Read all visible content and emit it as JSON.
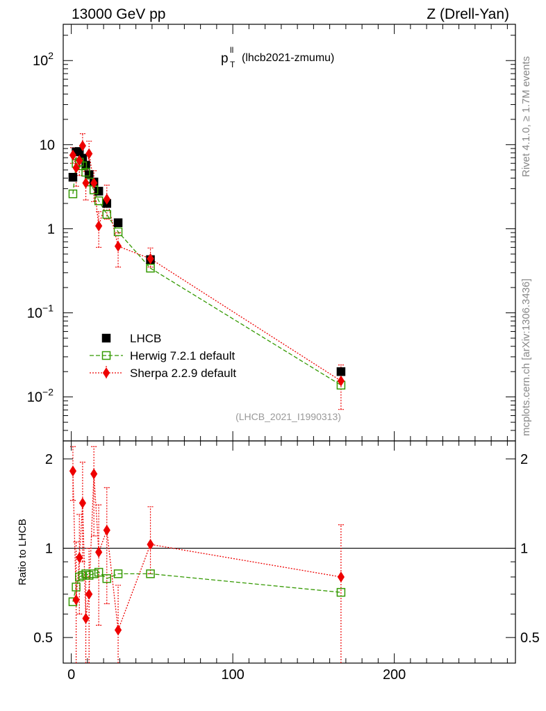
{
  "header": {
    "left": "13000 GeV pp",
    "right": "Z (Drell-Yan)"
  },
  "plot_title": {
    "main": "p",
    "superscript": "ll",
    "subscript": "T",
    "suffix": "(lhcb2021-zmumu)"
  },
  "side_labels": {
    "rivet": "Rivet 4.1.0, ≥ 1.7M events",
    "mcplots": "mcplots.cern.ch [arXiv:1306.3436]"
  },
  "analysis_tag": "(LHCB_2021_I1990313)",
  "ratio_ylabel": "Ratio to LHCB",
  "colors": {
    "data": "#000000",
    "herwig": "#339900",
    "sherpa": "#ee0000"
  },
  "chart_data": [
    {
      "type": "scatter",
      "panel": "main",
      "yscale": "log",
      "xlim": [
        -5,
        275
      ],
      "ylim": [
        0.003,
        270
      ],
      "y_ticks": [
        {
          "value": 0.01,
          "base": "10",
          "exp": "−2"
        },
        {
          "value": 0.1,
          "base": "10",
          "exp": "−1"
        },
        {
          "value": 1,
          "base": "1",
          "exp": ""
        },
        {
          "value": 10,
          "base": "10",
          "exp": ""
        },
        {
          "value": 100,
          "base": "10",
          "exp": "2"
        }
      ],
      "legend": [
        "LHCB",
        "Herwig 7.2.1 default",
        "Sherpa 2.2.9 default"
      ],
      "legend_position": "bottom-left",
      "series": [
        {
          "name": "LHCB",
          "style": "data",
          "x": [
            1,
            3,
            5,
            7,
            9,
            11,
            14,
            17,
            22,
            29,
            49,
            167
          ],
          "y": [
            4.1,
            8.2,
            8.3,
            6.9,
            5.7,
            4.4,
            3.6,
            2.8,
            2.0,
            1.18,
            0.43,
            0.02
          ]
        },
        {
          "name": "Herwig 7.2.1 default",
          "style": "herwig",
          "x": [
            1,
            3,
            5,
            7,
            9,
            11,
            14,
            17,
            22,
            29,
            49,
            167
          ],
          "y": [
            2.6,
            6.0,
            6.2,
            5.6,
            4.7,
            3.6,
            2.9,
            2.15,
            1.48,
            0.92,
            0.34,
            0.0138
          ]
        },
        {
          "name": "Sherpa 2.2.9 default",
          "style": "sherpa",
          "x": [
            1,
            3,
            5,
            7,
            9,
            11,
            14,
            17,
            22,
            29,
            49,
            167
          ],
          "y": [
            7.5,
            5.3,
            6.5,
            9.7,
            3.5,
            7.8,
            3.5,
            1.08,
            2.25,
            0.62,
            0.44,
            0.0155
          ],
          "err_lo": [
            6.0,
            3.2,
            4.3,
            6.0,
            2.2,
            4.7,
            2.1,
            0.6,
            1.3,
            0.35,
            0.35,
            0.0071
          ],
          "err_hi": [
            9.2,
            7.5,
            8.7,
            13.5,
            4.8,
            11.0,
            4.9,
            1.6,
            3.3,
            0.9,
            0.59,
            0.024
          ]
        }
      ]
    },
    {
      "type": "scatter",
      "panel": "ratio",
      "ylabel": "Ratio to LHCB",
      "yscale": "log",
      "xlim": [
        -5,
        275
      ],
      "ylim": [
        0.41,
        2.3
      ],
      "y_ticks": [
        0.5,
        1,
        2
      ],
      "x_ticks": [
        0,
        100,
        200
      ],
      "series": [
        {
          "name": "Herwig 7.2.1 default",
          "style": "herwig",
          "x": [
            1,
            3,
            5,
            7,
            9,
            11,
            14,
            17,
            22,
            29,
            49,
            167
          ],
          "y": [
            0.66,
            0.74,
            0.8,
            0.81,
            0.82,
            0.81,
            0.82,
            0.83,
            0.79,
            0.82,
            0.82,
            0.71
          ]
        },
        {
          "name": "Sherpa 2.2.9 default",
          "style": "sherpa",
          "x": [
            1,
            3,
            5,
            7,
            9,
            11,
            14,
            17,
            22,
            29,
            49,
            167
          ],
          "y": [
            1.82,
            0.67,
            0.93,
            1.42,
            0.58,
            0.7,
            1.78,
            0.97,
            1.15,
            0.53,
            1.03,
            0.8
          ],
          "err_lo": [
            1.45,
            0.4,
            0.6,
            0.9,
            0.35,
            0.4,
            1.1,
            0.55,
            0.65,
            0.3,
            0.82,
            0.37
          ],
          "err_hi": [
            2.2,
            1.05,
            1.3,
            1.95,
            0.8,
            1.0,
            2.2,
            1.4,
            1.6,
            0.75,
            1.38,
            1.2
          ]
        }
      ]
    }
  ]
}
